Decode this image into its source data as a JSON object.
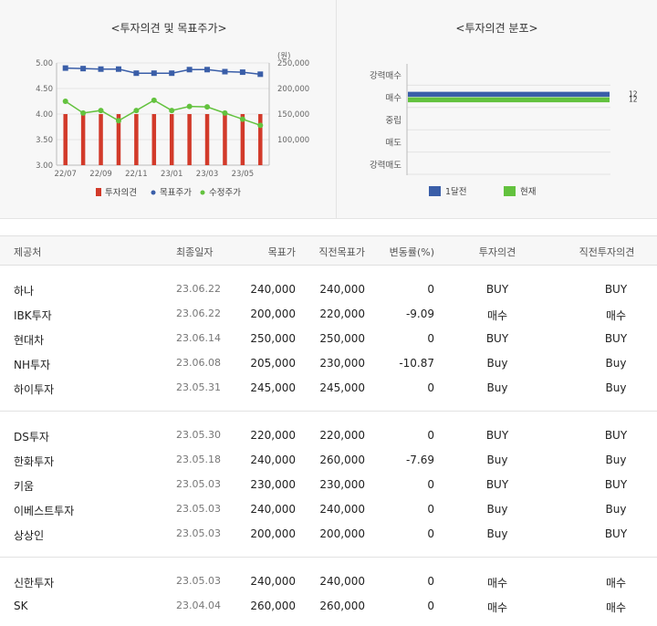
{
  "chart_data": [
    {
      "type": "bar-line-combo",
      "title": "<투자의견 및 목표주가>",
      "x": [
        "22/07",
        "22/08",
        "22/09",
        "22/10",
        "22/11",
        "22/12",
        "23/01",
        "23/02",
        "23/03",
        "23/04",
        "23/05",
        "23/06"
      ],
      "xtick_labels": [
        "22/07",
        "22/09",
        "22/11",
        "23/01",
        "23/03",
        "23/05"
      ],
      "left_axis": {
        "ylim": [
          3.0,
          5.0
        ],
        "ticks": [
          "5.00",
          "4.50",
          "4.00",
          "3.50",
          "3.00"
        ]
      },
      "right_axis": {
        "unit": "(원)",
        "ylim": [
          50000,
          250000
        ],
        "ticks": [
          "250,000",
          "200,000",
          "150,000",
          "100,000"
        ]
      },
      "series": [
        {
          "name": "투자의견",
          "kind": "bar",
          "axis": "left",
          "color": "#d23a2a",
          "values": [
            4.0,
            4.0,
            4.0,
            4.0,
            4.0,
            4.0,
            4.0,
            4.0,
            4.0,
            4.0,
            4.0,
            4.0
          ]
        },
        {
          "name": "목표주가",
          "kind": "line",
          "axis": "right",
          "color": "#3a5ea8",
          "values": [
            240000,
            239000,
            238000,
            238000,
            230000,
            230000,
            230000,
            237000,
            237000,
            233000,
            232000,
            228000
          ]
        },
        {
          "name": "수정주가",
          "kind": "line",
          "axis": "right",
          "color": "#63c23e",
          "values": [
            175000,
            152000,
            157000,
            137000,
            157000,
            177000,
            157000,
            165000,
            164000,
            152000,
            140000,
            128000
          ]
        }
      ],
      "legend_position": "bottom"
    },
    {
      "type": "bar",
      "orientation": "horizontal",
      "title": "<투자의견 분포>",
      "categories": [
        "강력매수",
        "매수",
        "중립",
        "매도",
        "강력매도"
      ],
      "series": [
        {
          "name": "1달전",
          "color": "#3a5ea8",
          "values": [
            0,
            12,
            0,
            0,
            0
          ]
        },
        {
          "name": "현재",
          "color": "#63c23e",
          "values": [
            0,
            12,
            0,
            0,
            0
          ]
        }
      ],
      "value_labels": [
        "12",
        "12"
      ],
      "legend_position": "bottom"
    }
  ],
  "table": {
    "headers": [
      "제공처",
      "최종일자",
      "목표가",
      "직전목표가",
      "변동률(%)",
      "투자의견",
      "직전투자의견"
    ],
    "groups": [
      [
        [
          "하나",
          "23.06.22",
          "240,000",
          "240,000",
          "0",
          "BUY",
          "BUY"
        ],
        [
          "IBK투자",
          "23.06.22",
          "200,000",
          "220,000",
          "-9.09",
          "매수",
          "매수"
        ],
        [
          "현대차",
          "23.06.14",
          "250,000",
          "250,000",
          "0",
          "BUY",
          "BUY"
        ],
        [
          "NH투자",
          "23.06.08",
          "205,000",
          "230,000",
          "-10.87",
          "Buy",
          "Buy"
        ],
        [
          "하이투자",
          "23.05.31",
          "245,000",
          "245,000",
          "0",
          "Buy",
          "Buy"
        ]
      ],
      [
        [
          "DS투자",
          "23.05.30",
          "220,000",
          "220,000",
          "0",
          "BUY",
          "BUY"
        ],
        [
          "한화투자",
          "23.05.18",
          "240,000",
          "260,000",
          "-7.69",
          "Buy",
          "Buy"
        ],
        [
          "키움",
          "23.05.03",
          "230,000",
          "230,000",
          "0",
          "BUY",
          "BUY"
        ],
        [
          "이베스트투자",
          "23.05.03",
          "240,000",
          "240,000",
          "0",
          "Buy",
          "Buy"
        ],
        [
          "상상인",
          "23.05.03",
          "200,000",
          "200,000",
          "0",
          "Buy",
          "BUY"
        ]
      ],
      [
        [
          "신한투자",
          "23.05.03",
          "240,000",
          "240,000",
          "0",
          "매수",
          "매수"
        ],
        [
          "SK",
          "23.04.04",
          "260,000",
          "260,000",
          "0",
          "매수",
          "매수"
        ]
      ]
    ]
  }
}
